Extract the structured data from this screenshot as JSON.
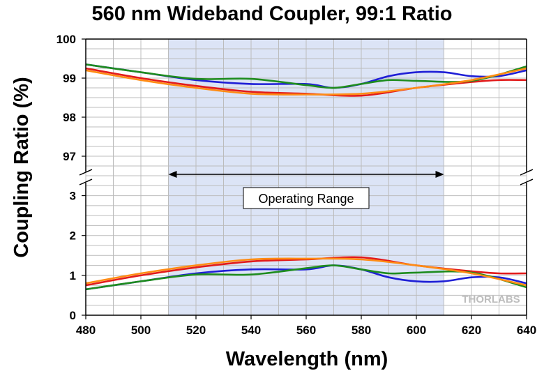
{
  "chart_data": {
    "type": "line",
    "title": "560 nm Wideband Coupler, 99:1 Ratio",
    "xlabel": "Wavelength (nm)",
    "ylabel": "Coupling Ratio (%)",
    "xlim": [
      480,
      640
    ],
    "x_ticks": [
      "480",
      "500",
      "520",
      "540",
      "560",
      "580",
      "600",
      "620",
      "640"
    ],
    "y_upper": {
      "ylim": [
        96.5,
        100
      ],
      "ticks": [
        "97",
        "98",
        "99",
        "100"
      ]
    },
    "y_lower": {
      "ylim": [
        0,
        3.5
      ],
      "ticks": [
        "0",
        "1",
        "2",
        "3"
      ]
    },
    "axis_break": true,
    "grid": true,
    "operating_range": {
      "label": "Operating Range",
      "x": [
        510,
        610
      ],
      "color": "#dce4f6"
    },
    "watermark": "THORLABS",
    "series": [
      {
        "color": "#1f1fd6",
        "upper": {
          "x": [
            480,
            500,
            520,
            540,
            560,
            570,
            580,
            590,
            600,
            610,
            620,
            630,
            640
          ],
          "y": [
            99.35,
            99.15,
            98.95,
            98.85,
            98.85,
            98.75,
            98.85,
            99.05,
            99.15,
            99.15,
            99.05,
            99.05,
            99.2
          ]
        },
        "lower": {
          "x": [
            480,
            500,
            520,
            540,
            560,
            570,
            580,
            590,
            600,
            610,
            620,
            630,
            640
          ],
          "y": [
            0.65,
            0.85,
            1.05,
            1.15,
            1.15,
            1.25,
            1.15,
            0.95,
            0.85,
            0.85,
            0.95,
            0.95,
            0.8
          ]
        }
      },
      {
        "color": "#e21b1b",
        "upper": {
          "x": [
            480,
            500,
            520,
            540,
            560,
            580,
            600,
            620,
            630,
            640
          ],
          "y": [
            99.25,
            99.0,
            98.8,
            98.65,
            98.6,
            98.55,
            98.75,
            98.9,
            98.95,
            98.95
          ]
        },
        "lower": {
          "x": [
            480,
            500,
            520,
            540,
            560,
            580,
            600,
            620,
            630,
            640
          ],
          "y": [
            0.75,
            1.0,
            1.2,
            1.35,
            1.4,
            1.45,
            1.25,
            1.1,
            1.05,
            1.05
          ]
        }
      },
      {
        "color": "#1e8c1e",
        "upper": {
          "x": [
            480,
            500,
            520,
            540,
            560,
            570,
            580,
            590,
            600,
            620,
            640
          ],
          "y": [
            99.35,
            99.15,
            98.98,
            98.98,
            98.82,
            98.75,
            98.85,
            98.95,
            98.93,
            98.93,
            99.3
          ]
        },
        "lower": {
          "x": [
            480,
            500,
            520,
            540,
            560,
            570,
            580,
            590,
            600,
            620,
            640
          ],
          "y": [
            0.65,
            0.85,
            1.02,
            1.02,
            1.18,
            1.25,
            1.15,
            1.05,
            1.07,
            1.07,
            0.7
          ]
        }
      },
      {
        "color": "#ff8c14",
        "upper": {
          "x": [
            480,
            500,
            520,
            540,
            560,
            580,
            600,
            620,
            640
          ],
          "y": [
            99.2,
            98.95,
            98.75,
            98.6,
            98.58,
            98.6,
            98.75,
            98.95,
            99.25
          ]
        },
        "lower": {
          "x": [
            480,
            500,
            520,
            540,
            560,
            580,
            600,
            620,
            640
          ],
          "y": [
            0.8,
            1.05,
            1.25,
            1.4,
            1.42,
            1.4,
            1.25,
            1.05,
            0.75
          ]
        }
      }
    ]
  }
}
